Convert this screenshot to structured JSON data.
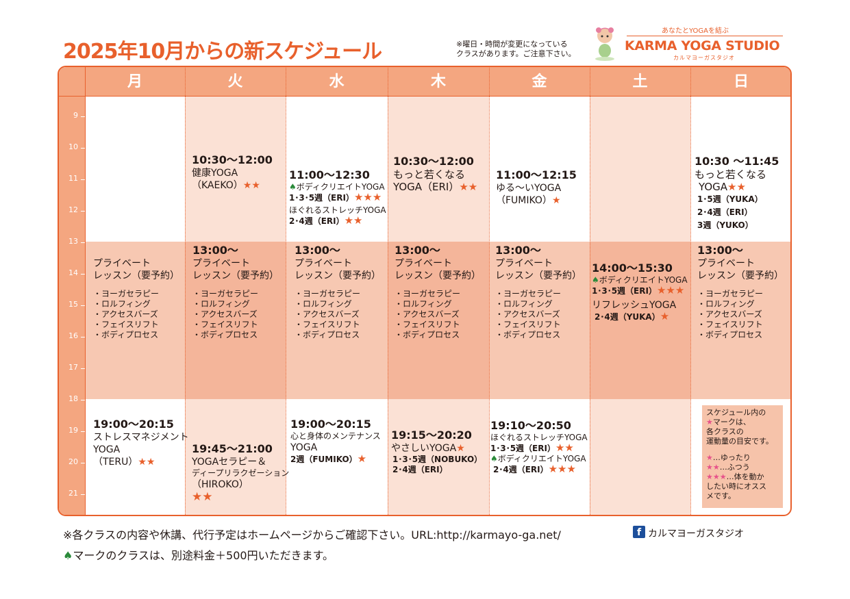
{
  "title": "2025年10月からの新スケジュール",
  "note": [
    "※曜日・時間が変更になっている",
    "クラスがあります。ご注意下さい。"
  ],
  "logo": {
    "tagline": "あなたとYOGAを結ぶ",
    "name": "KARMA YOGA STUDIO",
    "kana": "カルマヨーガスタジオ"
  },
  "days": [
    "月",
    "火",
    "水",
    "木",
    "金",
    "土",
    "日"
  ],
  "hours": [
    "9",
    "10",
    "11",
    "12",
    "13",
    "14",
    "15",
    "16",
    "17",
    "18",
    "19",
    "20",
    "21"
  ],
  "private": {
    "time": "13:00～",
    "l1": "プライベート",
    "l2": "レッスン（要予約）",
    "items": [
      "・ヨーガセラピー",
      "・ロルフィング",
      "・アクセスバーズ",
      "・フェイスリフト",
      "・ボディプロセス"
    ]
  },
  "morning": {
    "tue": {
      "time": "10:30～12:00",
      "l1": "健康YOGA",
      "l2": "（KAEKO）",
      "stars": "★★"
    },
    "wed": {
      "time": "11:00～12:30",
      "spade": "♠",
      "l1": "ボディクリエイトYOGA",
      "l2": "1･3･5週（ERI）",
      "stars2": "★★★",
      "l3": "ほぐれるストレッチYOGA",
      "l4": "2･4週（ERI）",
      "stars4": "★★"
    },
    "thu": {
      "time": "10:30～12:00",
      "l1": "もっと若くなる",
      "l2": "YOGA（ERI）",
      "stars": "★★"
    },
    "fri": {
      "time": "11:00～12:15",
      "l1": "ゆる～いYOGA",
      "l2": "（FUMIKO）",
      "stars": "★"
    },
    "sun": {
      "time": "10:30 ～11:45",
      "l1": "もっと若くなる",
      "l2": "YOGA",
      "stars": "★★",
      "l3": "1･5週（YUKA）",
      "l4": "2･4週（ERI）",
      "l5": "3週（YUKO）"
    }
  },
  "sat_afternoon": {
    "time": "14:00～15:30",
    "spade": "♠",
    "l1": "ボディクリエイトYOGA",
    "l2": "1･3･5週（ERI）",
    "stars2": "★★★",
    "l3": "リフレッシュYOGA",
    "l4": "2･4週（YUKA）",
    "stars4": "★"
  },
  "evening": {
    "mon": {
      "time": "19:00～20:15",
      "l1": "ストレスマネジメント",
      "l2": "YOGA",
      "l3": "（TERU）",
      "stars": "★★"
    },
    "tue": {
      "time": "19:45～21:00",
      "l1": "YOGAセラピー＆",
      "l2": "ディープリラクゼーション",
      "l3": "（HIROKO）",
      "stars": "★★"
    },
    "wed": {
      "time": "19:00～20:15",
      "l1": "心と身体のメンテナンス",
      "l2": "YOGA",
      "l3": "2週（FUMIKO）",
      "stars": "★"
    },
    "thu": {
      "time": "19:15～20:20",
      "l1": "やさしいYOGA",
      "stars1": "★",
      "l2": "1･3･5週（NOBUKO）",
      "l3": "2･4週（ERI）"
    },
    "fri": {
      "time": "19:10～20:50",
      "l1": "ほぐれるストレッチYOGA",
      "l2": "1･3･5週（ERI）",
      "stars2": "★★",
      "spade": "♠",
      "l3": "ボディクリエイトYOGA",
      "l4": "2･4週（ERI）",
      "stars4": "★★★"
    }
  },
  "legend": {
    "l1": "スケジュール内の",
    "star": "★",
    "l2": "マークは、",
    "l3": "各クラスの",
    "l4": "運動量の目安です。",
    "s1": "★",
    "d1": "…ゆったり",
    "s2": "★★",
    "d2": "…ふつう",
    "s3": "★★★",
    "d3": "…体を動か",
    "d4": "したい時にオスス",
    "d5": "メです。"
  },
  "footer": {
    "line1": "※各クラスの内容や休講、代行予定はホームページからご確認下さい。URL:http://karmayo-ga.net/",
    "fb_icon": "f",
    "fb_text": "カルマヨーガスタジオ",
    "spade": "♠",
    "line2": "マークのクラスは、別途料金＋500円いただきます。"
  },
  "colors": {
    "accent": "#e8602c",
    "header": "#f4a680",
    "light_band": "#fbe1d5",
    "mid_band": "#f7c8b2",
    "dark_band": "#f4b59a",
    "spade": "#2a8a3a"
  }
}
